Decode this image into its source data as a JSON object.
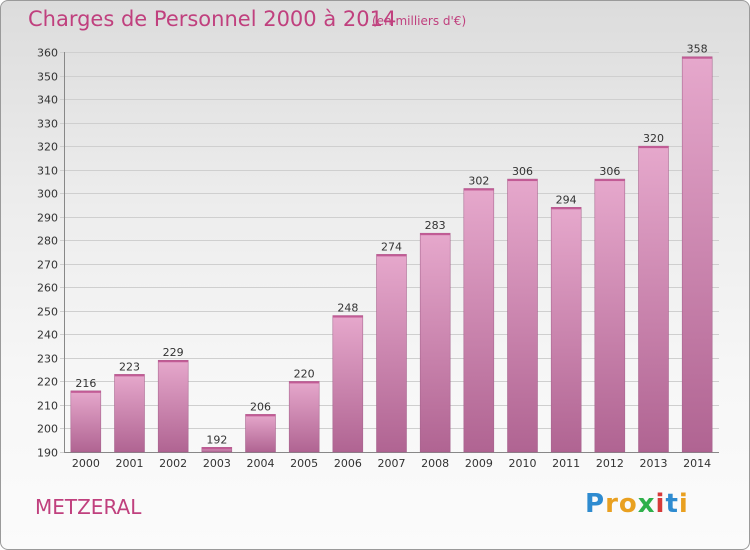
{
  "header": {
    "title": "Charges de Personnel 2000 à 2014",
    "unit_note": "(en milliers d'€)"
  },
  "footer": {
    "commune": "METZERAL",
    "logo_text": "Proxiti"
  },
  "colors": {
    "title": "#c0407e",
    "bar_top": "#e6a8cc",
    "bar_bottom": "#b06492",
    "logo_letters": [
      "#2e8bd0",
      "#e9a020",
      "#e9a020",
      "#2fb04b",
      "#d63a3a",
      "#2e8bd0",
      "#e9a020"
    ]
  },
  "chart_data": {
    "type": "bar",
    "title": "Charges de Personnel 2000 à 2014",
    "subtitle": "(en milliers d'€)",
    "categories": [
      "2000",
      "2001",
      "2002",
      "2003",
      "2004",
      "2005",
      "2006",
      "2007",
      "2008",
      "2009",
      "2010",
      "2011",
      "2012",
      "2013",
      "2014"
    ],
    "values": [
      216,
      223,
      229,
      192,
      206,
      220,
      248,
      274,
      283,
      302,
      306,
      294,
      306,
      320,
      358
    ],
    "ylim": [
      190,
      360
    ],
    "yticks": [
      190,
      200,
      210,
      220,
      230,
      240,
      250,
      260,
      270,
      280,
      290,
      300,
      310,
      320,
      330,
      340,
      350,
      360
    ],
    "grid": true
  }
}
